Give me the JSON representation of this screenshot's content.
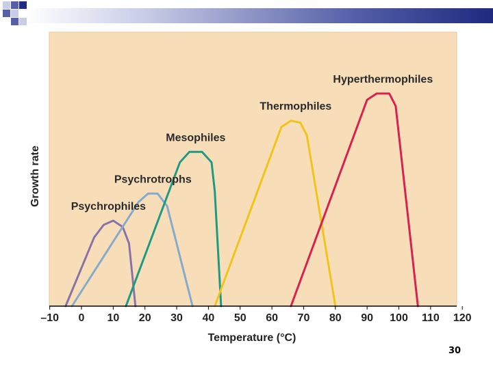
{
  "slide": {
    "page_number": "30",
    "accent_colors": [
      "#1f2a80",
      "#5560a8",
      "#c9cde6"
    ]
  },
  "chart_data": {
    "type": "line",
    "xlabel": "Temperature (°C)",
    "ylabel": "Growth rate",
    "xlim": [
      -10,
      120
    ],
    "x_ticks": [
      -10,
      0,
      10,
      20,
      30,
      40,
      50,
      60,
      70,
      80,
      90,
      100,
      110,
      120
    ],
    "x_tick_labels": [
      "–10",
      "0",
      "10",
      "20",
      "30",
      "40",
      "50",
      "60",
      "70",
      "80",
      "90",
      "100",
      "110",
      "120"
    ],
    "y_axis_values_shown": false,
    "ylim": [
      0,
      1
    ],
    "grid": false,
    "background_color": "#f7deb8",
    "series": [
      {
        "name": "Psychrophiles",
        "color": "#8a72a8",
        "points": [
          [
            -5,
            0
          ],
          [
            4,
            0.33
          ],
          [
            7,
            0.39
          ],
          [
            10,
            0.41
          ],
          [
            13,
            0.38
          ],
          [
            15,
            0.3
          ],
          [
            17,
            0
          ]
        ]
      },
      {
        "name": "Psychrotrophs",
        "color": "#86aacc",
        "points": [
          [
            -3,
            0
          ],
          [
            18,
            0.5
          ],
          [
            21,
            0.54
          ],
          [
            24,
            0.54
          ],
          [
            27,
            0.48
          ],
          [
            35,
            0
          ]
        ]
      },
      {
        "name": "Mesophiles",
        "color": "#1f9a82",
        "points": [
          [
            14,
            0
          ],
          [
            31,
            0.69
          ],
          [
            34,
            0.74
          ],
          [
            38,
            0.74
          ],
          [
            41,
            0.69
          ],
          [
            42,
            0.55
          ],
          [
            44,
            0
          ]
        ]
      },
      {
        "name": "Thermophiles",
        "color": "#f2c41a",
        "points": [
          [
            42,
            0
          ],
          [
            63,
            0.86
          ],
          [
            66,
            0.89
          ],
          [
            69,
            0.88
          ],
          [
            71,
            0.82
          ],
          [
            80,
            0
          ]
        ]
      },
      {
        "name": "Hyperthermophiles",
        "color": "#d9214e",
        "points": [
          [
            66,
            0
          ],
          [
            90,
            0.99
          ],
          [
            93,
            1.02
          ],
          [
            97,
            1.02
          ],
          [
            99,
            0.96
          ],
          [
            106,
            0
          ]
        ]
      }
    ]
  }
}
